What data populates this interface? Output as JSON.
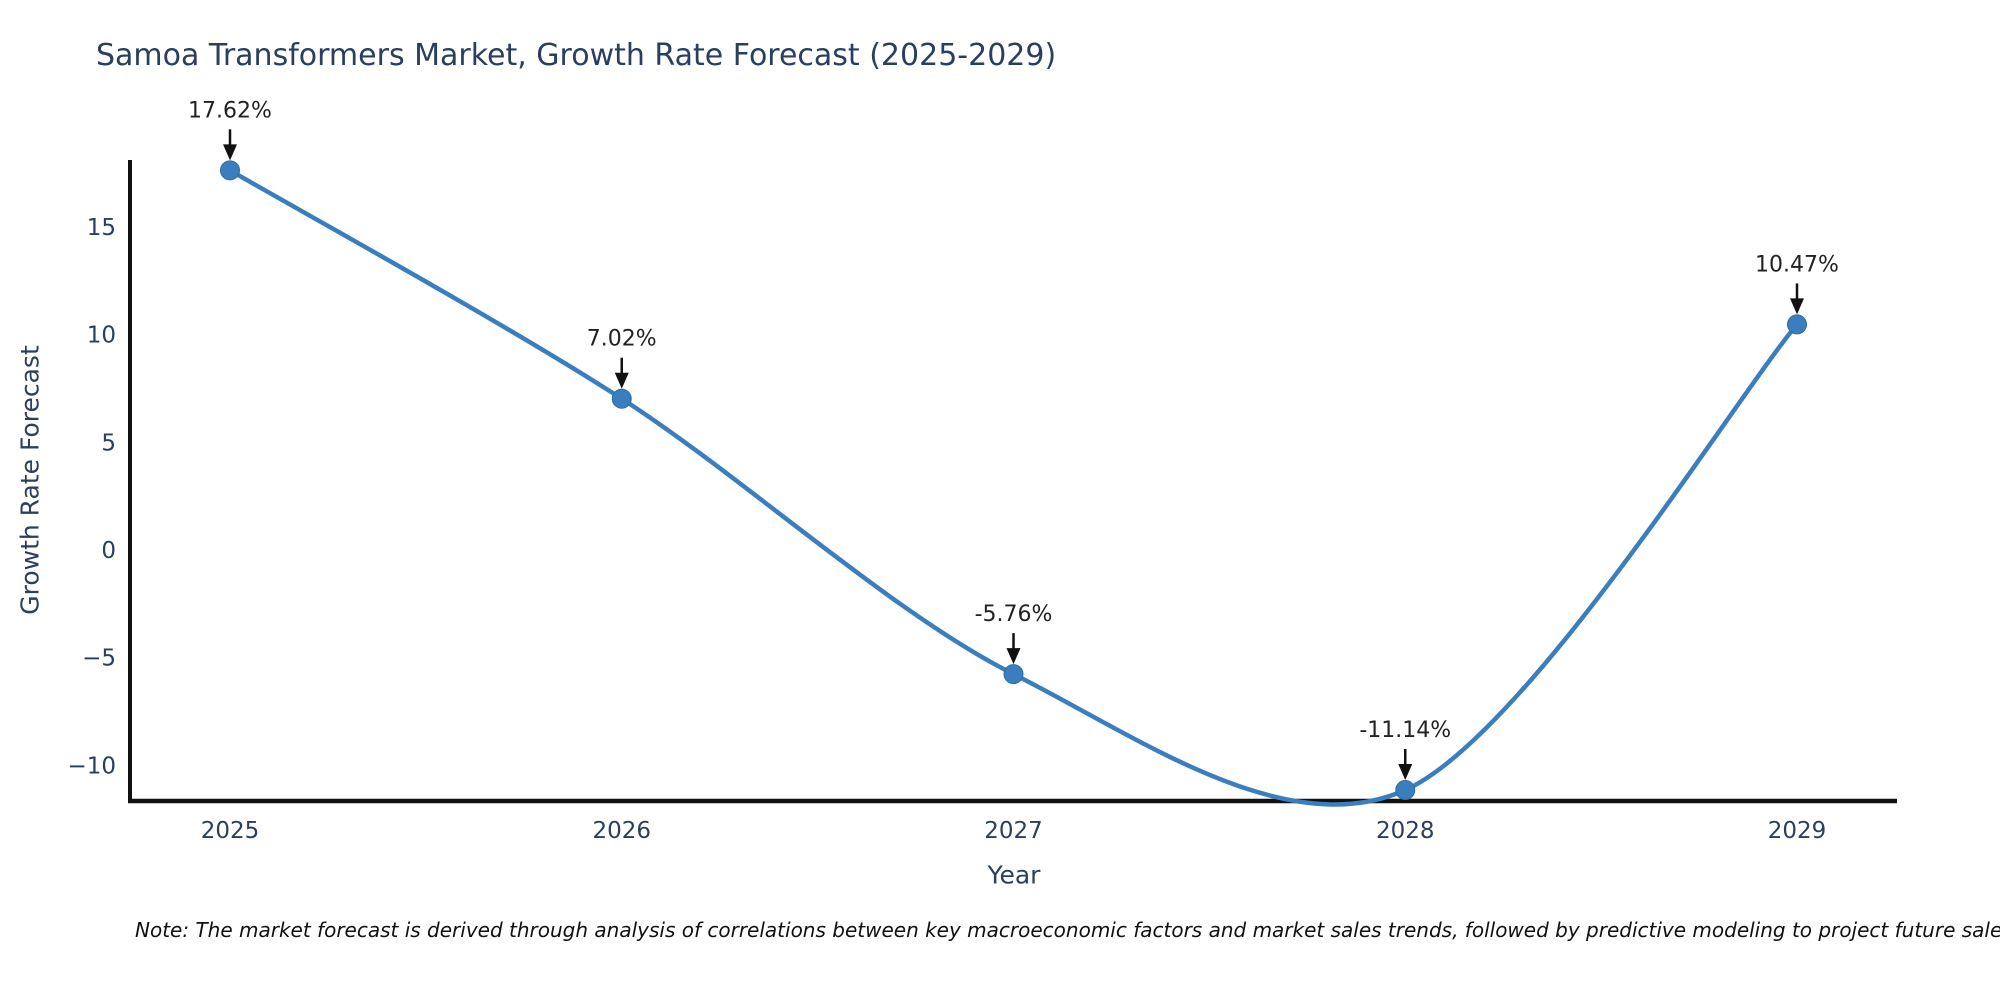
{
  "figure": {
    "note": "Note: The market forecast is derived through analysis of correlations between key macroeconomic factors and market sales trends, followed by predictive modeling to project future sales"
  },
  "chart_data": {
    "type": "line",
    "title": "Samoa Transformers Market, Growth Rate Forecast (2025-2029)",
    "xlabel": "Year",
    "ylabel": "Growth Rate Forecast",
    "categories": [
      "2025",
      "2026",
      "2027",
      "2028",
      "2029"
    ],
    "series": [
      {
        "name": "Growth Rate Forecast",
        "values": [
          17.62,
          7.02,
          -5.76,
          -11.14,
          10.47
        ]
      }
    ],
    "point_labels": [
      "17.62%",
      "7.02%",
      "-5.76%",
      "-11.14%",
      "10.47%"
    ],
    "yticks": [
      15,
      10,
      5,
      0,
      -5,
      -10
    ],
    "ylim": [
      -11.65,
      18.1
    ],
    "line_shape": "spline",
    "grid": false,
    "legend": "none",
    "colors": {
      "line": "#3a7ebf",
      "marker": "#3a7ebf",
      "marker_edge": "#2e6da4",
      "axis": "#111111",
      "tick_text": "#2a3f5f",
      "annotation_text": "#222222",
      "arrow": "#111111"
    }
  }
}
